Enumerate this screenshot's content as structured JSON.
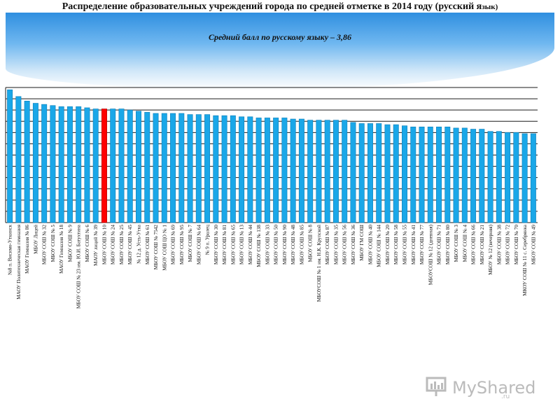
{
  "header": {
    "title_main": "Распределение образовательных учреждений города по средней отметке в 2014 году (русский я",
    "title_small": "зык)"
  },
  "logo": {
    "brand": "MyShared",
    "sub": ".ru"
  },
  "chart_data": {
    "type": "bar",
    "subtitle": "Средний балл по русскому языку – 3,86",
    "ylim": [
      3.3,
      4.5
    ],
    "grid": true,
    "highlight_color": "#ff0000",
    "bar_color": "#1aa7e8",
    "categories": [
      "№8 п. Висимо-Уткинск",
      "МАОУ Политехническая гимназия",
      "МАОУ Гимназия № 86",
      "МБОУ Лицей",
      "МБОУ СОШ № 32",
      "МБОУ СОШ № 5",
      "МАОУ Гимназия № 18",
      "МБОУ СОШ № 9",
      "МБОУ СОШ № 23 им. Ю.И. Батухтина",
      "МБОУ СОШ № 6",
      "МАОУ лицей № 39",
      "МБОУ СОШ № 10",
      "МБОУ СОШ № 24",
      "МБОУ СОШ № 25",
      "МБОУ СОШ № 45",
      "№ 12 д. Усть-Утка",
      "МБОУ СОШ № 61",
      "МБОУ СОШ № 7542",
      "МБОУ СОШ ЦО № 1",
      "МБОУ СОШ № 69",
      "МБОУ СОШ № 95",
      "МБОУ СОШ № 7",
      "МБОУ СОШ № 64",
      "№ 9 п. Уралец",
      "МБОУ СОШ № 30",
      "МБОУ СОШ № 81",
      "МБОУ СОШ № 65",
      "МБОУ СОШ № 13",
      "МБОУ СОШ № 44",
      "МБОУ СОШ № 138",
      "МБОУ СОШ № 33",
      "МБОУ СОШ № 50",
      "МБОУ СОШ № 90",
      "МБОУ СОШ № 48",
      "МБОУ СОШ № 85",
      "МБОУ СОШ № 8",
      "МБОУСОШ № 1 им. Н.К. Крупской",
      "МБОУ СОШ № 87",
      "МБОУ СОШ № 35",
      "МБОУ СОШ № 56",
      "МБОУ СОШ № 36",
      "МБОУ ГМ СОШ",
      "МБОУ СОШ № 40",
      "МБОУ СОШ № 144",
      "МБОУ СОШ № 20",
      "МБОУ СОШ № 58",
      "МБОУ СОШ № 55",
      "МБОУ СОШ № 41",
      "МБОУ СОШ № 77",
      "МБОУСОШ № 12 (дневная)",
      "МБОУ СОШ № 71",
      "МБОУ СОШ № 80",
      "МБОУ СОШ № 3",
      "МБОУ СОШ № 4",
      "МБОУ СОШ № 66",
      "МБОУ СОШ № 21",
      "МБОУ № 12 (вечерняя)",
      "МБОУ СОШ № 38",
      "МБОУ СОШ № 72",
      "МБОУ СОШ № 70",
      "МКОУ СОШ № 11 с. Серебрянка",
      "МБОУ СОШ № 49"
    ],
    "values": [
      4.48,
      4.42,
      4.38,
      4.36,
      4.35,
      4.34,
      4.33,
      4.33,
      4.33,
      4.32,
      4.31,
      4.31,
      4.31,
      4.31,
      4.3,
      4.29,
      4.28,
      4.27,
      4.27,
      4.27,
      4.27,
      4.26,
      4.26,
      4.26,
      4.25,
      4.25,
      4.25,
      4.24,
      4.24,
      4.23,
      4.23,
      4.23,
      4.23,
      4.22,
      4.22,
      4.21,
      4.21,
      4.21,
      4.21,
      4.21,
      4.19,
      4.18,
      4.18,
      4.18,
      4.17,
      4.17,
      4.16,
      4.15,
      4.15,
      4.15,
      4.15,
      4.15,
      4.14,
      4.14,
      4.13,
      4.13,
      4.11,
      4.11,
      4.1,
      4.1,
      4.09,
      4.09
    ],
    "highlight_index": 11
  }
}
